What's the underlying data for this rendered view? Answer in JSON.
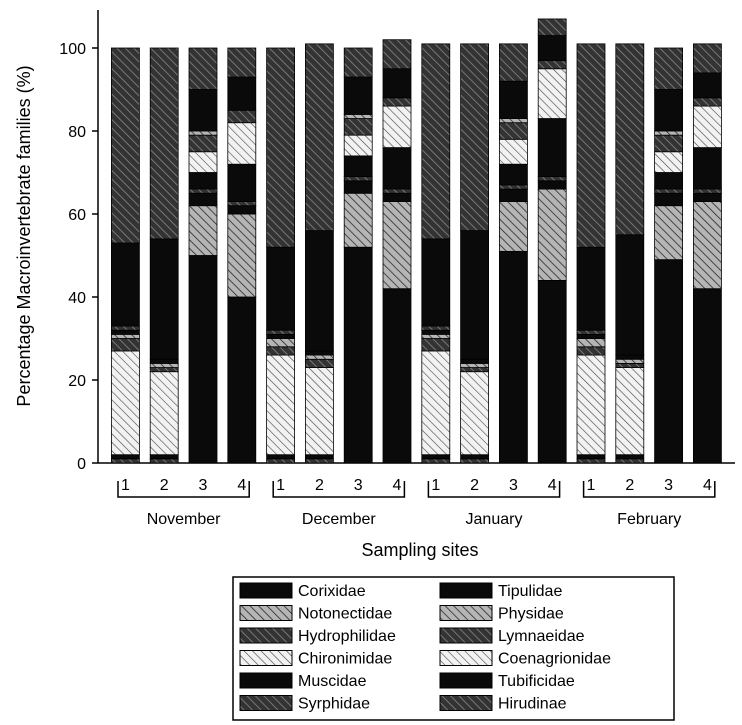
{
  "chart_data": {
    "type": "bar",
    "stacked": true,
    "ylabel": "Percentage Macroinvertebrate families (%)",
    "xlabel": "Sampling sites",
    "ylim": [
      0,
      100
    ],
    "yticks": [
      0,
      20,
      40,
      60,
      80,
      100
    ],
    "groups": [
      "November",
      "December",
      "January",
      "February"
    ],
    "sites": [
      "1",
      "2",
      "3",
      "4"
    ],
    "bars": [
      {
        "group": "November",
        "site": "1"
      },
      {
        "group": "November",
        "site": "2"
      },
      {
        "group": "November",
        "site": "3"
      },
      {
        "group": "November",
        "site": "4"
      },
      {
        "group": "December",
        "site": "1"
      },
      {
        "group": "December",
        "site": "2"
      },
      {
        "group": "December",
        "site": "3"
      },
      {
        "group": "December",
        "site": "4"
      },
      {
        "group": "January",
        "site": "1"
      },
      {
        "group": "January",
        "site": "2"
      },
      {
        "group": "January",
        "site": "3"
      },
      {
        "group": "January",
        "site": "4"
      },
      {
        "group": "February",
        "site": "1"
      },
      {
        "group": "February",
        "site": "2"
      },
      {
        "group": "February",
        "site": "3"
      },
      {
        "group": "February",
        "site": "4"
      }
    ],
    "series": [
      {
        "name": "Hirudinae",
        "pattern": "hatch-dark",
        "values": [
          1,
          1,
          0,
          0,
          1,
          1,
          0,
          0,
          1,
          1,
          0,
          0,
          1,
          1,
          0,
          0
        ]
      },
      {
        "name": "Tubificidae",
        "pattern": "solid",
        "values": [
          1,
          1,
          50,
          40,
          1,
          1,
          52,
          42,
          1,
          1,
          51,
          44,
          1,
          1,
          49,
          42
        ]
      },
      {
        "name": "Coenagrionidae",
        "pattern": "hatch-light",
        "values": [
          25,
          20,
          0,
          0,
          24,
          21,
          0,
          0,
          25,
          20,
          0,
          0,
          24,
          21,
          0,
          0
        ]
      },
      {
        "name": "Lymnaeidae",
        "pattern": "hatch-dark",
        "values": [
          3,
          1,
          0,
          0,
          2,
          2,
          0,
          0,
          3,
          1,
          0,
          0,
          2,
          1,
          0,
          0
        ]
      },
      {
        "name": "Physidae",
        "pattern": "hatch-mid",
        "values": [
          1,
          1,
          12,
          20,
          2,
          1,
          13,
          21,
          1,
          1,
          12,
          22,
          2,
          1,
          13,
          21
        ]
      },
      {
        "name": "Tipulidae",
        "pattern": "solid",
        "values": [
          1,
          1,
          3,
          2,
          1,
          1,
          3,
          2,
          1,
          1,
          3,
          2,
          1,
          1,
          3,
          2
        ]
      },
      {
        "name": "Syrphidae",
        "pattern": "hatch-dark",
        "values": [
          1,
          0,
          1,
          1,
          1,
          0,
          1,
          1,
          1,
          0,
          1,
          1,
          1,
          0,
          1,
          1
        ]
      },
      {
        "name": "Muscidae",
        "pattern": "solid",
        "values": [
          20,
          29,
          4,
          9,
          20,
          29,
          5,
          10,
          21,
          31,
          5,
          14,
          20,
          29,
          4,
          10
        ]
      },
      {
        "name": "Chironimidae",
        "pattern": "hatch-light",
        "values": [
          0,
          0,
          5,
          10,
          0,
          0,
          5,
          10,
          0,
          0,
          6,
          12,
          0,
          0,
          5,
          10
        ]
      },
      {
        "name": "Hydrophilidae",
        "pattern": "hatch-dark",
        "values": [
          0,
          0,
          4,
          3,
          0,
          0,
          4,
          2,
          0,
          0,
          4,
          2,
          0,
          0,
          4,
          2
        ]
      },
      {
        "name": "Notonectidae",
        "pattern": "hatch-mid",
        "values": [
          0,
          0,
          1,
          0,
          0,
          0,
          1,
          0,
          0,
          0,
          1,
          0,
          0,
          0,
          1,
          0
        ]
      },
      {
        "name": "Corixidae",
        "pattern": "solid",
        "values": [
          0,
          0,
          10,
          8,
          0,
          0,
          9,
          7,
          0,
          0,
          9,
          6,
          0,
          0,
          10,
          6
        ]
      },
      {
        "name": "Hirudinae (top)",
        "pattern": "hatch-dark",
        "legend": false,
        "values": [
          47,
          46,
          10,
          7,
          48,
          45,
          7,
          7,
          47,
          45,
          9,
          4,
          49,
          46,
          10,
          7
        ]
      }
    ],
    "legend": {
      "placement": "bottom-center",
      "items": [
        {
          "label": "Corixidae",
          "pattern": "solid"
        },
        {
          "label": "Notonectidae",
          "pattern": "hatch-mid"
        },
        {
          "label": "Hydrophilidae",
          "pattern": "hatch-dark"
        },
        {
          "label": "Chironimidae",
          "pattern": "hatch-light"
        },
        {
          "label": "Muscidae",
          "pattern": "solid"
        },
        {
          "label": "Syrphidae",
          "pattern": "hatch-dark"
        },
        {
          "label": "Tipulidae",
          "pattern": "solid"
        },
        {
          "label": "Physidae",
          "pattern": "hatch-mid"
        },
        {
          "label": "Lymnaeidae",
          "pattern": "hatch-dark"
        },
        {
          "label": "Coenagrionidae",
          "pattern": "hatch-light"
        },
        {
          "label": "Tubificidae",
          "pattern": "solid"
        },
        {
          "label": "Hirudinae",
          "pattern": "hatch-dark"
        }
      ]
    }
  }
}
